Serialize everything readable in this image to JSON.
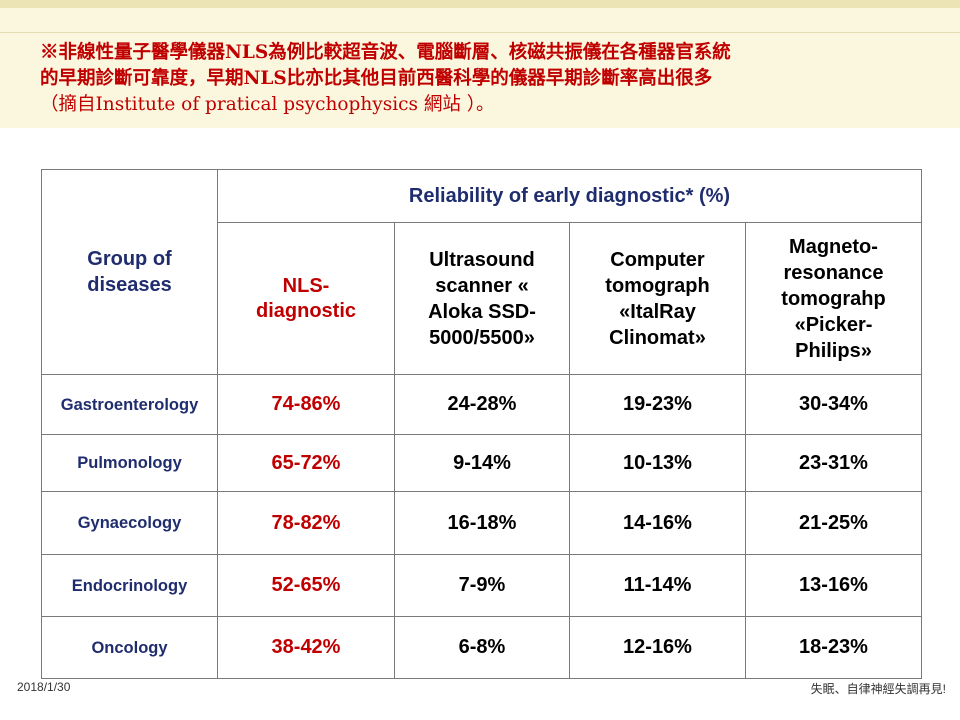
{
  "intro": {
    "line1": "※非線性量子醫學儀器NLS為例比較超音波、電腦斷層、核磁共振儀在各種器官系統",
    "line2": "的早期診斷可靠度，早期NLS比亦比其他目前西醫科學的儀器早期診斷率高出很多",
    "line3": "（摘自Institute of pratical psychophysics 網站 ）。"
  },
  "table": {
    "group_header": "Group of diseases",
    "main_header": "Reliability of early diagnostic* (%)",
    "columns": [
      "NLS-diagnostic",
      "Ultrasound scanner « Aloka SSD-5000/5500»",
      "Computer tomograph «ItalRay Clinomat»",
      "Magneto-resonance tomograhp «Picker-Philips»"
    ],
    "rows": [
      {
        "group": "Gastroenterology",
        "values": [
          "74-86%",
          "24-28%",
          "19-23%",
          "30-34%"
        ]
      },
      {
        "group": "Pulmonology",
        "values": [
          "65-72%",
          "9-14%",
          "10-13%",
          "23-31%"
        ]
      },
      {
        "group": "Gynaecology",
        "values": [
          "78-82%",
          "16-18%",
          "14-16%",
          "21-25%"
        ]
      },
      {
        "group": "Endocrinology",
        "values": [
          "52-65%",
          "7-9%",
          "11-14%",
          "13-16%"
        ]
      },
      {
        "group": "Oncology",
        "values": [
          "38-42%",
          "6-8%",
          "12-16%",
          "18-23%"
        ]
      }
    ]
  },
  "footer": {
    "date": "2018/1/30",
    "tagline": "失眠、自律神經失調再見!"
  }
}
